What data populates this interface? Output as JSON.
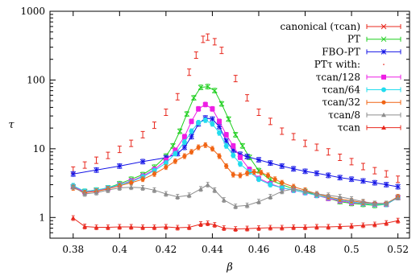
{
  "chart_data": {
    "type": "line",
    "xlabel": "β",
    "ylabel": "τ",
    "xlim": [
      0.37,
      0.525
    ],
    "ylim": [
      0.5,
      1000
    ],
    "yscale": "log",
    "grid": false,
    "legend_position": "top-right",
    "x_ticks": [
      "0.38",
      "0.4",
      "0.42",
      "0.44",
      "0.46",
      "0.48",
      "0.5",
      "0.52"
    ],
    "y_ticks": [
      "1",
      "10",
      "100",
      "1000"
    ],
    "legend_header": "PTτ with:",
    "series": [
      {
        "name": "canonical (τcan)",
        "color": "#e8281e",
        "marker": "errorbar",
        "line": false,
        "x": [
          0.38,
          0.385,
          0.39,
          0.395,
          0.4,
          0.405,
          0.41,
          0.415,
          0.42,
          0.425,
          0.43,
          0.433,
          0.436,
          0.438,
          0.441,
          0.444,
          0.45,
          0.455,
          0.46,
          0.465,
          0.47,
          0.475,
          0.48,
          0.485,
          0.49,
          0.495,
          0.5,
          0.505,
          0.51,
          0.515,
          0.52
        ],
        "y": [
          4.9,
          5.8,
          6.8,
          8,
          9.8,
          12,
          16,
          22,
          34,
          57,
          130,
          230,
          390,
          420,
          360,
          270,
          105,
          55,
          34,
          25,
          18,
          15,
          12,
          10.5,
          9,
          7.5,
          6.5,
          5.5,
          4.8,
          4.3,
          3.6
        ]
      },
      {
        "name": "PT",
        "color": "#1fcf1f",
        "marker": "cross",
        "line": true,
        "x": [
          0.38,
          0.385,
          0.39,
          0.395,
          0.4,
          0.405,
          0.41,
          0.415,
          0.42,
          0.423,
          0.426,
          0.429,
          0.432,
          0.435,
          0.438,
          0.441,
          0.444,
          0.447,
          0.45,
          0.453,
          0.456,
          0.46,
          0.465,
          0.47,
          0.475,
          0.48,
          0.485,
          0.49,
          0.495,
          0.5,
          0.505,
          0.51,
          0.515,
          0.52
        ],
        "y": [
          2.8,
          2.4,
          2.5,
          2.7,
          3.1,
          3.6,
          4.2,
          5.4,
          7.8,
          11,
          18,
          32,
          55,
          78,
          80,
          70,
          45,
          27,
          16,
          11,
          7.5,
          4.8,
          3.5,
          3.0,
          2.6,
          2.4,
          2.1,
          1.9,
          1.7,
          1.6,
          1.55,
          1.5,
          1.55,
          1.95
        ]
      },
      {
        "name": "FBO-PT",
        "color": "#1414e6",
        "marker": "star",
        "line": true,
        "x": [
          0.38,
          0.39,
          0.4,
          0.41,
          0.42,
          0.425,
          0.428,
          0.431,
          0.434,
          0.437,
          0.44,
          0.443,
          0.446,
          0.449,
          0.452,
          0.455,
          0.46,
          0.465,
          0.47,
          0.475,
          0.48,
          0.485,
          0.49,
          0.495,
          0.5,
          0.505,
          0.51,
          0.515,
          0.52
        ],
        "y": [
          4.3,
          4.9,
          5.6,
          6.5,
          7.4,
          8.5,
          10.5,
          15,
          23,
          28,
          27,
          21,
          13,
          9.5,
          8.3,
          7.7,
          6.9,
          6.2,
          5.6,
          5.1,
          4.7,
          4.4,
          4.1,
          3.8,
          3.6,
          3.4,
          3.2,
          3.0,
          2.8
        ]
      },
      {
        "name": "τcan/128",
        "color": "#ee1ee4",
        "marker": "square",
        "line": true,
        "x": [
          0.38,
          0.385,
          0.39,
          0.395,
          0.4,
          0.405,
          0.41,
          0.415,
          0.42,
          0.424,
          0.428,
          0.431,
          0.434,
          0.437,
          0.44,
          0.443,
          0.446,
          0.449,
          0.452,
          0.456,
          0.46,
          0.465,
          0.47,
          0.475,
          0.48,
          0.485,
          0.49,
          0.495,
          0.5,
          0.505,
          0.51,
          0.515,
          0.52
        ],
        "y": [
          2.8,
          2.35,
          2.45,
          2.65,
          3.0,
          3.4,
          4.0,
          5.0,
          6.8,
          9.5,
          15,
          25,
          38,
          44,
          38,
          25,
          16,
          11,
          7.5,
          5.0,
          3.7,
          3.1,
          2.7,
          2.5,
          2.3,
          2.1,
          1.9,
          1.75,
          1.65,
          1.6,
          1.55,
          1.55,
          1.95
        ]
      },
      {
        "name": "τcan/64",
        "color": "#22dcee",
        "marker": "circle",
        "line": true,
        "x": [
          0.38,
          0.385,
          0.39,
          0.395,
          0.4,
          0.405,
          0.41,
          0.415,
          0.42,
          0.424,
          0.428,
          0.431,
          0.434,
          0.437,
          0.44,
          0.443,
          0.446,
          0.449,
          0.452,
          0.456,
          0.46,
          0.465,
          0.47,
          0.475,
          0.48,
          0.485,
          0.49,
          0.495,
          0.5,
          0.505,
          0.51,
          0.515,
          0.52
        ],
        "y": [
          2.9,
          2.4,
          2.5,
          2.7,
          3.0,
          3.3,
          3.9,
          4.8,
          6.2,
          8.5,
          12.5,
          18,
          24,
          26,
          23,
          17,
          11,
          8.0,
          6.0,
          4.6,
          3.6,
          3.0,
          2.7,
          2.5,
          2.3,
          2.1,
          1.95,
          1.8,
          1.7,
          1.6,
          1.55,
          1.55,
          1.95
        ]
      },
      {
        "name": "τcan/32",
        "color": "#f06414",
        "marker": "dot",
        "line": true,
        "x": [
          0.38,
          0.385,
          0.39,
          0.395,
          0.4,
          0.405,
          0.41,
          0.415,
          0.42,
          0.424,
          0.428,
          0.431,
          0.434,
          0.437,
          0.44,
          0.443,
          0.446,
          0.449,
          0.452,
          0.455,
          0.458,
          0.461,
          0.464,
          0.467,
          0.47,
          0.475,
          0.48,
          0.485,
          0.49,
          0.495,
          0.5,
          0.505,
          0.51,
          0.515,
          0.52
        ],
        "y": [
          2.7,
          2.3,
          2.4,
          2.6,
          2.9,
          3.2,
          3.6,
          4.3,
          5.4,
          6.6,
          7.8,
          9.0,
          10.5,
          11.3,
          10,
          7.8,
          5.6,
          4.2,
          4.1,
          4.4,
          4.6,
          4.5,
          4.1,
          3.6,
          3.2,
          2.8,
          2.5,
          2.2,
          2.0,
          1.85,
          1.75,
          1.65,
          1.6,
          1.6,
          2.0
        ]
      },
      {
        "name": "τcan/8",
        "color": "#8c8c8c",
        "marker": "triangle",
        "line": true,
        "x": [
          0.38,
          0.385,
          0.39,
          0.395,
          0.4,
          0.405,
          0.41,
          0.415,
          0.42,
          0.425,
          0.43,
          0.435,
          0.438,
          0.441,
          0.445,
          0.45,
          0.455,
          0.46,
          0.465,
          0.47,
          0.475,
          0.48,
          0.485,
          0.49,
          0.495,
          0.5,
          0.505,
          0.51,
          0.515,
          0.52
        ],
        "y": [
          2.8,
          2.2,
          2.3,
          2.5,
          2.7,
          2.75,
          2.7,
          2.5,
          2.2,
          2.0,
          2.1,
          2.6,
          3.0,
          2.5,
          1.8,
          1.45,
          1.5,
          1.7,
          2.0,
          2.4,
          2.6,
          2.4,
          2.2,
          2.1,
          2.0,
          1.85,
          1.7,
          1.6,
          1.6,
          1.95
        ]
      },
      {
        "name": "τcan",
        "color": "#e8281e",
        "marker": "triangle",
        "line": true,
        "x": [
          0.38,
          0.385,
          0.39,
          0.395,
          0.4,
          0.405,
          0.41,
          0.415,
          0.42,
          0.425,
          0.43,
          0.435,
          0.438,
          0.441,
          0.445,
          0.45,
          0.455,
          0.46,
          0.465,
          0.47,
          0.475,
          0.48,
          0.485,
          0.49,
          0.495,
          0.5,
          0.505,
          0.51,
          0.515,
          0.52
        ],
        "y": [
          0.98,
          0.74,
          0.72,
          0.72,
          0.73,
          0.73,
          0.72,
          0.72,
          0.73,
          0.71,
          0.72,
          0.8,
          0.82,
          0.78,
          0.7,
          0.68,
          0.69,
          0.7,
          0.71,
          0.71,
          0.72,
          0.72,
          0.73,
          0.73,
          0.74,
          0.75,
          0.77,
          0.79,
          0.83,
          0.9
        ]
      }
    ]
  }
}
